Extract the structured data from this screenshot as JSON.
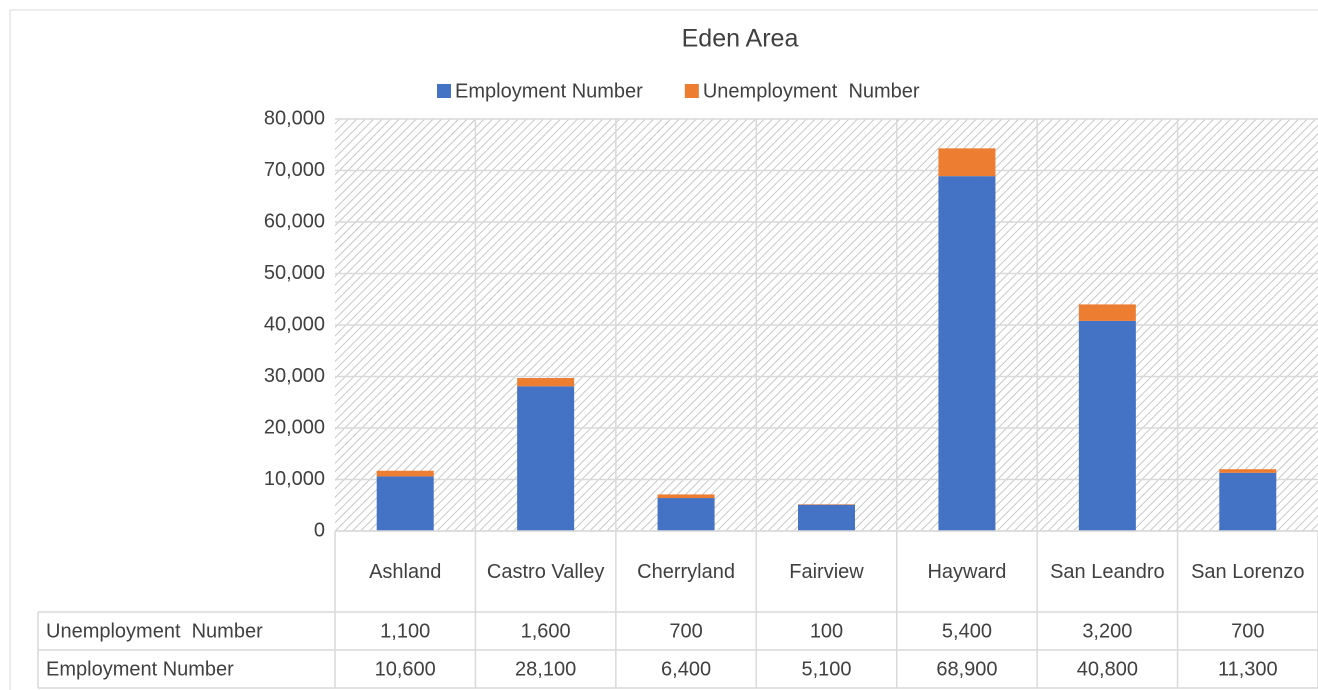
{
  "chart_data": {
    "type": "bar",
    "stacked": true,
    "title": "Eden Area",
    "categories": [
      "Ashland",
      "Castro Valley",
      "Cherryland",
      "Fairview",
      "Hayward",
      "San Leandro",
      "San Lorenzo"
    ],
    "series": [
      {
        "name": "Employment Number",
        "color": "#4472c4",
        "values": [
          10600,
          28100,
          6400,
          5100,
          68900,
          40800,
          11300
        ],
        "value_labels": [
          "10,600",
          "28,100",
          "6,400",
          "5,100",
          "68,900",
          "40,800",
          "11,300"
        ]
      },
      {
        "name": "Unemployment  Number",
        "color": "#ed7d31",
        "values": [
          1100,
          1600,
          700,
          100,
          5400,
          3200,
          700
        ],
        "value_labels": [
          "1,100",
          "1,600",
          "700",
          "100",
          "5,400",
          "3,200",
          "700"
        ]
      }
    ],
    "ylim": [
      0,
      80000
    ],
    "yticks": [
      0,
      {
        "value": 10000,
        "label": "10,000"
      },
      {
        "value": 20000,
        "label": "20,000"
      },
      {
        "value": 30000,
        "label": "30,000"
      },
      {
        "value": 40000,
        "label": "40,000"
      },
      {
        "value": 50000,
        "label": "50,000"
      },
      {
        "value": 60000,
        "label": "60,000"
      },
      {
        "value": 70000,
        "label": "70,000"
      },
      {
        "value": 80000,
        "label": "80,000"
      }
    ],
    "grid": true,
    "legend": "top",
    "data_table": true
  }
}
